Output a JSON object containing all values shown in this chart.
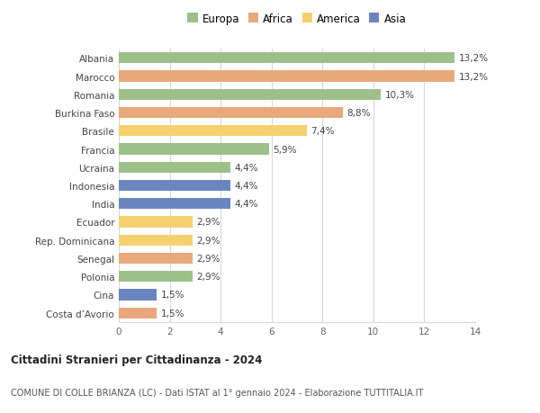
{
  "categories": [
    "Albania",
    "Marocco",
    "Romania",
    "Burkina Faso",
    "Brasile",
    "Francia",
    "Ucraina",
    "Indonesia",
    "India",
    "Ecuador",
    "Rep. Dominicana",
    "Senegal",
    "Polonia",
    "Cina",
    "Costa d’Avorio"
  ],
  "values": [
    13.2,
    13.2,
    10.3,
    8.8,
    7.4,
    5.9,
    4.4,
    4.4,
    4.4,
    2.9,
    2.9,
    2.9,
    2.9,
    1.5,
    1.5
  ],
  "labels": [
    "13,2%",
    "13,2%",
    "10,3%",
    "8,8%",
    "7,4%",
    "5,9%",
    "4,4%",
    "4,4%",
    "4,4%",
    "2,9%",
    "2,9%",
    "2,9%",
    "2,9%",
    "1,5%",
    "1,5%"
  ],
  "continents": [
    "Europa",
    "Africa",
    "Europa",
    "Africa",
    "America",
    "Europa",
    "Europa",
    "Asia",
    "Asia",
    "America",
    "America",
    "Africa",
    "Europa",
    "Asia",
    "Africa"
  ],
  "colors": {
    "Europa": "#9dc08b",
    "Africa": "#e8a87c",
    "America": "#f5d06e",
    "Asia": "#6b85c0"
  },
  "legend_order": [
    "Europa",
    "Africa",
    "America",
    "Asia"
  ],
  "title1": "Cittadini Stranieri per Cittadinanza - 2024",
  "title2": "COMUNE DI COLLE BRIANZA (LC) - Dati ISTAT al 1° gennaio 2024 - Elaborazione TUTTITALIA.IT",
  "xlim": [
    0,
    14
  ],
  "xticks": [
    0,
    2,
    4,
    6,
    8,
    10,
    12,
    14
  ],
  "bg_color": "#ffffff",
  "grid_color": "#d8d8d8"
}
